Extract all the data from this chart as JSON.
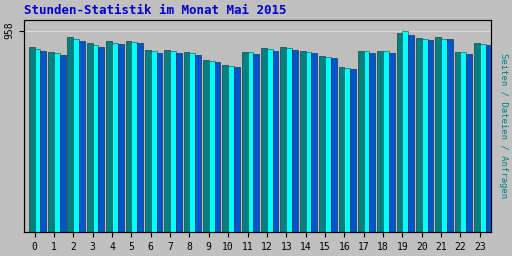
{
  "title": "Stunden-Statistik im Monat Mai 2015",
  "ylabel": "Seiten / Dateien / Anfragen",
  "xlabel_ticks": [
    0,
    1,
    2,
    3,
    4,
    5,
    6,
    7,
    8,
    9,
    10,
    11,
    12,
    13,
    14,
    15,
    16,
    17,
    18,
    19,
    20,
    21,
    22,
    23
  ],
  "ytick_label": "958",
  "ytick_val": 958,
  "bar_colors": [
    "#008080",
    "#00FFFF",
    "#0055CC"
  ],
  "fig_bg": "#C0C0C0",
  "plot_bg": "#BEBEBE",
  "title_color": "#0000CC",
  "ylabel_color": "#008080",
  "series_cyan": [
    870,
    850,
    920,
    890,
    900,
    905,
    860,
    860,
    850,
    815,
    790,
    855,
    870,
    875,
    858,
    835,
    780,
    860,
    860,
    958,
    920,
    920,
    855,
    895
  ],
  "series_teal": [
    880,
    855,
    930,
    900,
    910,
    910,
    865,
    865,
    855,
    818,
    793,
    858,
    875,
    878,
    862,
    838,
    784,
    862,
    862,
    945,
    923,
    926,
    858,
    898
  ],
  "series_blue": [
    862,
    843,
    910,
    882,
    893,
    898,
    854,
    854,
    844,
    808,
    784,
    848,
    862,
    866,
    850,
    828,
    776,
    852,
    852,
    935,
    915,
    916,
    848,
    888
  ],
  "ymin": 0,
  "ymax": 1010,
  "ytick_pos": 958
}
